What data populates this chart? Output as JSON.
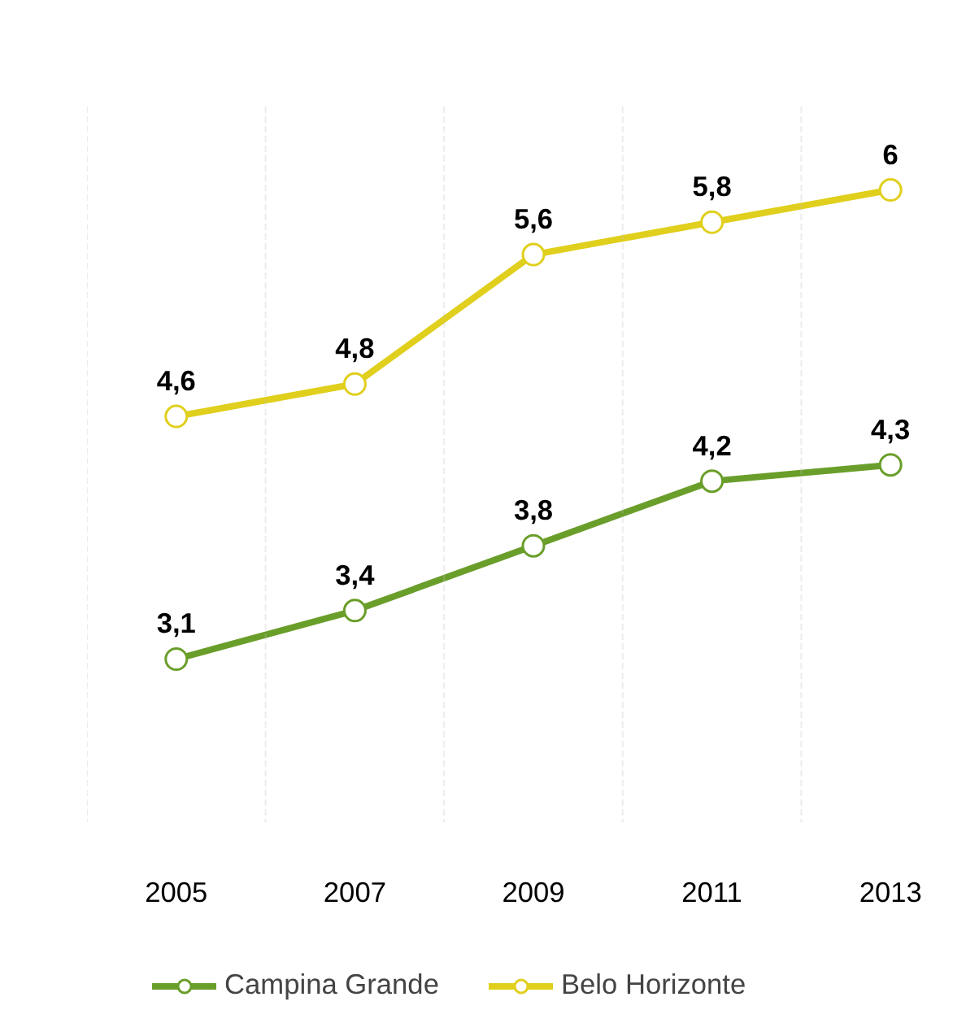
{
  "chart_data": {
    "type": "line",
    "categories": [
      "2005",
      "2007",
      "2009",
      "2011",
      "2013"
    ],
    "series": [
      {
        "name": "Campina Grande",
        "color": "#6a9e2a",
        "values": [
          3.1,
          3.4,
          3.8,
          4.2,
          4.3
        ],
        "value_labels": [
          "3,1",
          "3,4",
          "3,8",
          "4,2",
          "4,3"
        ]
      },
      {
        "name": "Belo Horizonte",
        "color": "#e0cf1c",
        "values": [
          4.6,
          4.8,
          5.6,
          5.8,
          6
        ],
        "value_labels": [
          "4,6",
          "4,8",
          "5,6",
          "5,8",
          "6"
        ]
      }
    ],
    "tick_labels": "x",
    "grid": "x",
    "legend": "bottom",
    "marker": "circle",
    "line_style": "solid"
  }
}
